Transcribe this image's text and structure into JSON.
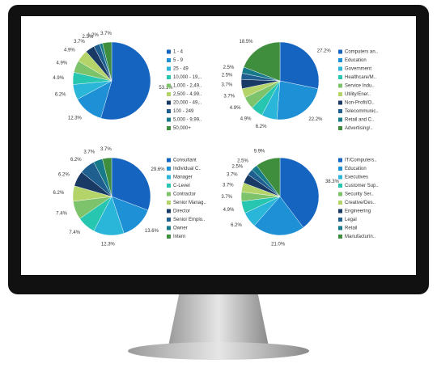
{
  "chart_data": [
    {
      "type": "pie",
      "categories": [
        "1 - 4",
        "5 - 9",
        "25 - 49",
        "10,000 - 19,..",
        "1,000 - 2,49..",
        "2,500 - 4,99..",
        "20,000 - 49,..",
        "100 - 249",
        "5,000 - 9,99..",
        "50,000+"
      ],
      "values": [
        53.1,
        12.3,
        6.2,
        4.9,
        4.9,
        4.9,
        3.7,
        2.5,
        1.2,
        3.7
      ],
      "value_labels": [
        "53.1%",
        "12.3%",
        "6.2%",
        "4.9%",
        "4.9%",
        "4.9%",
        "3.7%",
        "2.5%",
        "1.2%",
        "3.7%"
      ],
      "colors": [
        "#1565c0",
        "#1e90d6",
        "#29b6d8",
        "#26c6b0",
        "#7cc36b",
        "#b4d46a",
        "#1a3a66",
        "#1f5f8f",
        "#167a8a",
        "#3e8e3e"
      ]
    },
    {
      "type": "pie",
      "categories": [
        "Computers an..",
        "Education",
        "Government",
        "Healthcare/M..",
        "Service Indu..",
        "Utility/Ener..",
        "Non-Profit/O..",
        "Telecommunic..",
        "Retail and C..",
        "Advertising/.."
      ],
      "values": [
        27.2,
        22.2,
        6.2,
        4.9,
        4.9,
        3.7,
        3.7,
        2.5,
        2.5,
        18.5
      ],
      "value_labels": [
        "27.2%",
        "22.2%",
        "6.2%",
        "4.9%",
        "4.9%",
        "3.7%",
        "3.7%",
        "2.5%",
        "2.5%",
        "18.5%"
      ],
      "colors": [
        "#1565c0",
        "#1e90d6",
        "#29b6d8",
        "#26c6b0",
        "#7cc36b",
        "#b4d46a",
        "#1a3a66",
        "#1f5f8f",
        "#167a8a",
        "#3e8e3e"
      ]
    },
    {
      "type": "pie",
      "categories": [
        "Consultant",
        "Individual C..",
        "Manager",
        "C-Level",
        "Contractor",
        "Senior Manag..",
        "Director",
        "Senior Emplo..",
        "Owner",
        "Intern"
      ],
      "values": [
        29.6,
        13.6,
        12.3,
        7.4,
        7.4,
        6.2,
        6.2,
        6.2,
        3.7,
        3.7
      ],
      "value_labels": [
        "29.6%",
        "13.6%",
        "12.3%",
        "7.4%",
        "7.4%",
        "6.2%",
        "6.2%",
        "6.2%",
        "3.7%",
        "3.7%"
      ],
      "colors": [
        "#1565c0",
        "#1e90d6",
        "#29b6d8",
        "#26c6b0",
        "#7cc36b",
        "#b4d46a",
        "#1a3a66",
        "#1f5f8f",
        "#167a8a",
        "#3e8e3e"
      ]
    },
    {
      "type": "pie",
      "categories": [
        "IT/Computers..",
        "Education",
        "Executives",
        "Customer Sup..",
        "Security Ser..",
        "Creative/Des..",
        "Engineering",
        "Legal",
        "Retail",
        "Manufacturin.."
      ],
      "values": [
        38.3,
        21.0,
        6.2,
        4.9,
        3.7,
        3.7,
        3.7,
        2.5,
        2.5,
        9.9
      ],
      "value_labels": [
        "38.3%",
        "21.0%",
        "6.2%",
        "4.9%",
        "3.7%",
        "3.7%",
        "3.7%",
        "2.5%",
        "2.5%",
        "9.9%"
      ],
      "colors": [
        "#1565c0",
        "#1e90d6",
        "#29b6d8",
        "#26c6b0",
        "#7cc36b",
        "#b4d46a",
        "#1a3a66",
        "#1f5f8f",
        "#167a8a",
        "#3e8e3e"
      ]
    }
  ]
}
